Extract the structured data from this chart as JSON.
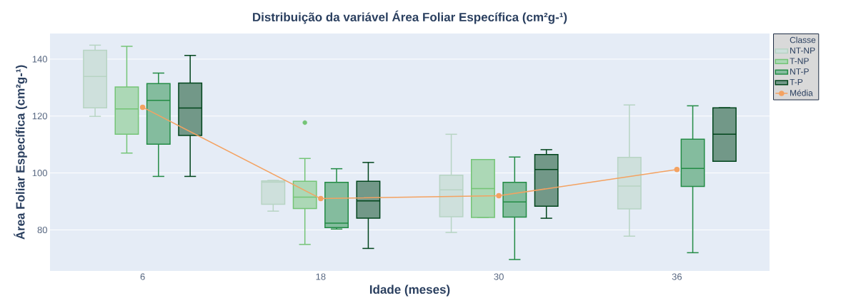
{
  "chart_data": {
    "type": "box",
    "title": "Distribuição da variável Área Foliar Específica (cm²g-¹)",
    "xlabel": "Idade (meses)",
    "ylabel": "Área Foliar Específica (cm²g-¹)",
    "legend_title": "Classe",
    "categories": [
      "6",
      "18",
      "30",
      "36"
    ],
    "ylim": [
      65.6,
      149
    ],
    "yticks": [
      80,
      100,
      120,
      140
    ],
    "grid": "y",
    "legend": "right",
    "series": [
      {
        "name": "NT-NP",
        "color": "#b7d4c3",
        "boxes": [
          {
            "low": 119.9,
            "q1": 122.9,
            "median": 133.9,
            "q3": 143.1,
            "high": 144.9
          },
          {
            "low": 86.6,
            "q1": 89,
            "median": 96.8,
            "q3": 97.2,
            "high": 97.4
          },
          {
            "low": 79.1,
            "q1": 84.6,
            "median": 94.1,
            "q3": 99.2,
            "high": 113.6
          },
          {
            "low": 77.8,
            "q1": 87.4,
            "median": 95.4,
            "q3": 105.5,
            "high": 123.9
          }
        ]
      },
      {
        "name": "T-NP",
        "color": "#74c476",
        "boxes": [
          {
            "low": 107,
            "q1": 113.6,
            "median": 122.5,
            "q3": 130.2,
            "high": 144.5
          },
          {
            "low": 74.9,
            "q1": 87.5,
            "median": 91.5,
            "q3": 97.1,
            "high": 105.1,
            "outliers": [
              117.7
            ]
          },
          {
            "low": 84.4,
            "q1": 84.4,
            "median": 94.5,
            "q3": 104.7,
            "high": 104.7
          },
          null
        ]
      },
      {
        "name": "NT-P",
        "color": "#238b45",
        "boxes": [
          {
            "low": 98.8,
            "q1": 110.1,
            "median": 125.5,
            "q3": 131.4,
            "high": 135.1
          },
          {
            "low": 80.3,
            "q1": 80.8,
            "median": 82.4,
            "q3": 96.7,
            "high": 101.5
          },
          {
            "low": 69.6,
            "q1": 84.5,
            "median": 89.8,
            "q3": 96.7,
            "high": 105.6
          },
          {
            "low": 72,
            "q1": 95.3,
            "median": 101.6,
            "q3": 111.9,
            "high": 123.6
          }
        ]
      },
      {
        "name": "T-P",
        "color": "#00441b",
        "boxes": [
          {
            "low": 98.8,
            "q1": 113.2,
            "median": 122.8,
            "q3": 131.6,
            "high": 141.3
          },
          {
            "low": 73.5,
            "q1": 84.1,
            "median": 90.2,
            "q3": 97.1,
            "high": 103.7
          },
          {
            "low": 84.1,
            "q1": 88.3,
            "median": 101.2,
            "q3": 106.5,
            "high": 108.2
          },
          {
            "low": 104.1,
            "q1": 104.1,
            "median": 113.6,
            "q3": 122.9,
            "high": 122.9
          }
        ]
      },
      {
        "name": "Média",
        "type": "line",
        "color": "#f4a261",
        "marker": "circle",
        "values": [
          123.1,
          91,
          92,
          101.2
        ]
      }
    ]
  }
}
